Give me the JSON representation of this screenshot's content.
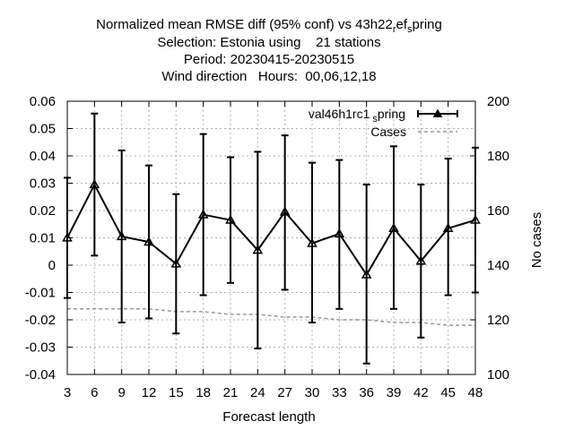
{
  "title": {
    "line1": {
      "before": "Normalized mean RMSE diff (95% conf) vs 43h22",
      "sub1": "r",
      "mid": "ef",
      "sub2": "s",
      "after": "pring"
    },
    "line2": "Selection: Estonia using    21 stations",
    "line3": "Period: 20230415-20230515",
    "line4": "Wind direction   Hours:  00,06,12,18"
  },
  "chart_data": {
    "type": "line",
    "xlabel": "Forecast length",
    "ylabel": "",
    "y2label": "No cases",
    "x": [
      3,
      6,
      9,
      12,
      15,
      18,
      21,
      24,
      27,
      30,
      33,
      36,
      39,
      42,
      45,
      48
    ],
    "xlim": [
      3,
      48
    ],
    "ylim": [
      -0.04,
      0.06
    ],
    "y2lim": [
      100,
      200
    ],
    "xticks": [
      "3",
      "6",
      "9",
      "12",
      "15",
      "18",
      "21",
      "24",
      "27",
      "30",
      "33",
      "36",
      "39",
      "42",
      "45",
      "48"
    ],
    "yticks": [
      "-0.04",
      "-0.03",
      "-0.02",
      "-0.01",
      "0",
      "0.01",
      "0.02",
      "0.03",
      "0.04",
      "0.05",
      "0.06"
    ],
    "y2ticks": [
      "100",
      "120",
      "140",
      "160",
      "180",
      "200"
    ],
    "grid": true,
    "legend_position": "top-right",
    "series": [
      {
        "name": {
          "before": "val46h1rc1",
          "sub": "s",
          "after": "pring"
        },
        "axis": "y1",
        "color": "#000000",
        "marker": "triangle",
        "values": [
          0.01,
          0.0295,
          0.0105,
          0.0085,
          0.0005,
          0.0185,
          0.0165,
          0.0055,
          0.0195,
          0.008,
          0.0115,
          -0.0035,
          0.0135,
          0.0015,
          0.0135,
          0.0165
        ],
        "error_low": [
          -0.012,
          0.0035,
          -0.021,
          -0.0195,
          -0.025,
          -0.011,
          -0.0065,
          -0.0305,
          -0.009,
          -0.021,
          -0.016,
          -0.036,
          -0.016,
          -0.0265,
          -0.011,
          -0.01
        ],
        "error_high": [
          0.032,
          0.0555,
          0.042,
          0.0365,
          0.026,
          0.048,
          0.0395,
          0.0415,
          0.0475,
          0.0375,
          0.0385,
          0.0295,
          0.0435,
          0.0295,
          0.039,
          0.043
        ]
      },
      {
        "name": "Cases",
        "axis": "y2",
        "color": "#999999",
        "dashed": true,
        "values": [
          124,
          124,
          124,
          124,
          123,
          123,
          122,
          122,
          121,
          121,
          120,
          120,
          119,
          119,
          118,
          118
        ]
      }
    ]
  }
}
